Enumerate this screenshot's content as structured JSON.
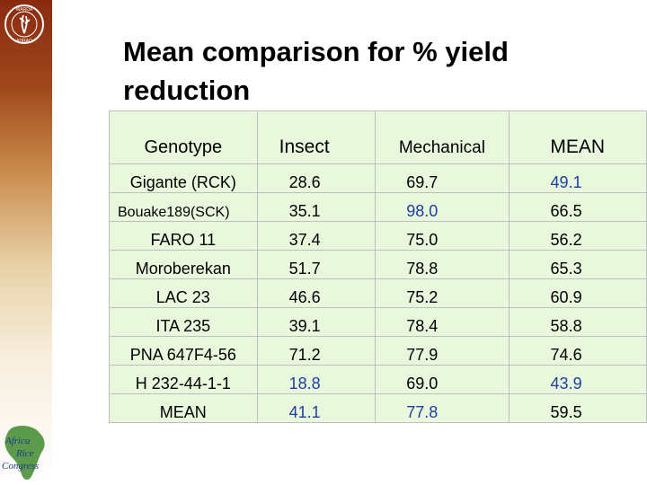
{
  "slide": {
    "title": "Mean comparison for % yield reduction"
  },
  "logos": {
    "top": {
      "icon": "warda-logo-icon",
      "text_top": "WARDA",
      "text_bottom": "ADRAO"
    },
    "bottom": {
      "icon": "africa-rice-congress-logo-icon",
      "lines": [
        "Africa",
        "Rice",
        "Congress"
      ]
    }
  },
  "table": {
    "headers": [
      "Genotype",
      "Insect",
      "Mechanical",
      "MEAN"
    ],
    "rows": [
      {
        "genotype": "Gigante (RCK)",
        "insect": "28.6",
        "mechanical": "69.7",
        "mean": "49.1"
      },
      {
        "genotype": "Bouake189(SCK)",
        "insect": "35.1",
        "mechanical": "98.0",
        "mean": "66.5"
      },
      {
        "genotype": "FARO 11",
        "insect": "37.4",
        "mechanical": "75.0",
        "mean": "56.2"
      },
      {
        "genotype": "Moroberekan",
        "insect": "51.7",
        "mechanical": "78.8",
        "mean": "65.3"
      },
      {
        "genotype": "LAC 23",
        "insect": "46.6",
        "mechanical": "75.2",
        "mean": "60.9"
      },
      {
        "genotype": "ITA 235",
        "insect": "39.1",
        "mechanical": "78.4",
        "mean": "58.8"
      },
      {
        "genotype": "PNA 647F4-56",
        "insect": "71.2",
        "mechanical": "77.9",
        "mean": "74.6"
      },
      {
        "genotype": "H 232-44-1-1",
        "insect": "18.8",
        "mechanical": "69.0",
        "mean": "43.9"
      },
      {
        "genotype": "MEAN",
        "insect": "41.1",
        "mechanical": "77.8",
        "mean": "59.5"
      }
    ]
  },
  "colors": {
    "highlight_blue": "#1f3fa0",
    "table_background": "#e9f7dd",
    "sidebar_top": "#8a2a10"
  }
}
